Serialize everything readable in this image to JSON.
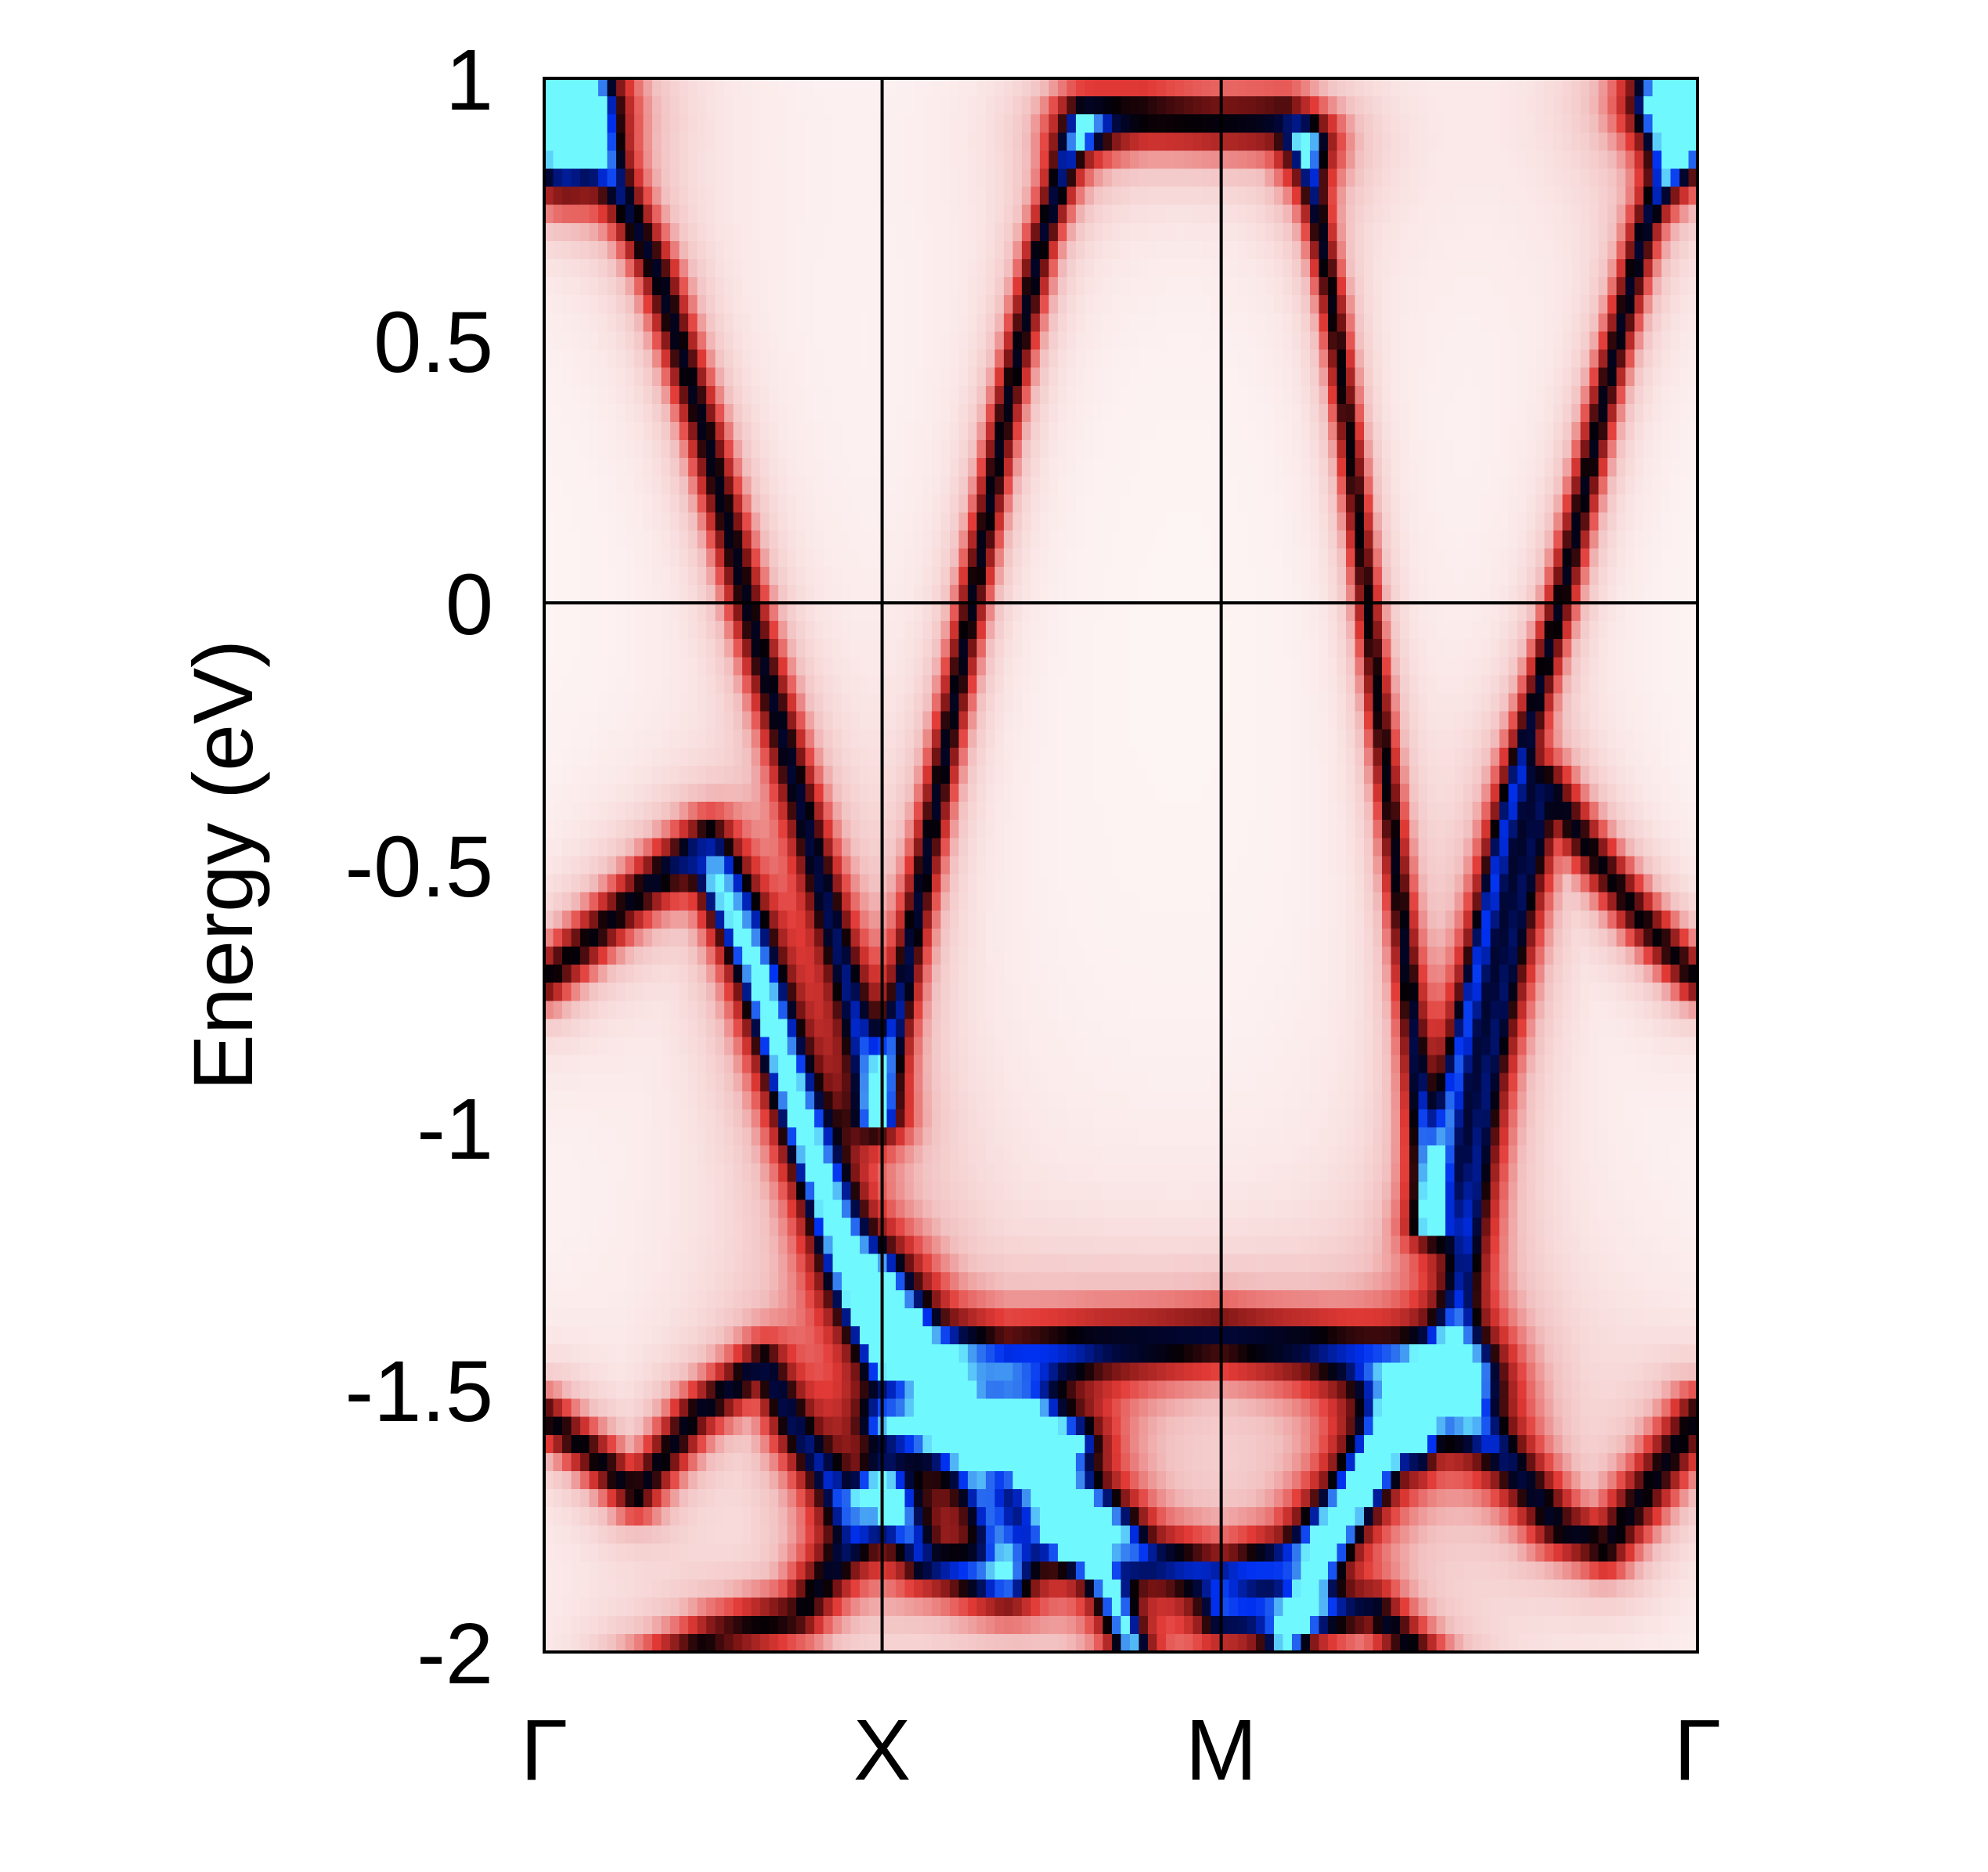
{
  "chart_data": {
    "type": "heatmap",
    "title": "",
    "subtitle": "",
    "xlabel": "",
    "ylabel": "Energy (eV)",
    "ylim": [
      -2,
      1
    ],
    "xlim": [
      0,
      1
    ],
    "grid": false,
    "legend": null,
    "colorbar": null,
    "y_ticks": [
      {
        "value": 1,
        "label": "1"
      },
      {
        "value": 0.5,
        "label": "0.5"
      },
      {
        "value": 0,
        "label": "0"
      },
      {
        "value": -0.5,
        "label": "-0.5"
      },
      {
        "value": -1,
        "label": "-1"
      },
      {
        "value": -1.5,
        "label": "-1.5"
      },
      {
        "value": -2,
        "label": "-2"
      }
    ],
    "x_ticks": [
      {
        "position": 0.0,
        "label": "Γ"
      },
      {
        "position": 0.293,
        "label": "X"
      },
      {
        "position": 0.587,
        "label": "M"
      },
      {
        "position": 1.0,
        "label": "Γ"
      }
    ],
    "reference_lines": {
      "vertical": [
        0.293,
        0.587
      ],
      "horizontal": [
        0
      ]
    },
    "colormap": {
      "description": "spectral weight: white -> red -> dark red -> black -> navy -> blue -> cyan",
      "stops": [
        {
          "v": 0.0,
          "color": "#fffbfb"
        },
        {
          "v": 0.18,
          "color": "#f2c0c0"
        },
        {
          "v": 0.35,
          "color": "#e23a36"
        },
        {
          "v": 0.5,
          "color": "#7a1414"
        },
        {
          "v": 0.6,
          "color": "#050005"
        },
        {
          "v": 0.7,
          "color": "#000840"
        },
        {
          "v": 0.82,
          "color": "#0030f0"
        },
        {
          "v": 0.92,
          "color": "#3a86f0"
        },
        {
          "v": 1.0,
          "color": "#70f8ff"
        }
      ]
    },
    "grid_resolution": {
      "k_columns": 128,
      "energy_rows": 87
    },
    "bands": [
      {
        "name": "Gamma-X crossing band",
        "width": 0.045,
        "weight": 1.0,
        "points": [
          [
            0.0,
            1.08
          ],
          [
            0.05,
            0.86
          ],
          [
            0.1,
            0.62
          ],
          [
            0.14,
            0.32
          ],
          [
            0.176,
            0.0
          ],
          [
            0.22,
            -0.36
          ],
          [
            0.26,
            -0.7
          ],
          [
            0.289,
            -0.97
          ]
        ]
      },
      {
        "name": "X-M rising band",
        "width": 0.035,
        "weight": 1.0,
        "points": [
          [
            0.289,
            -0.97
          ],
          [
            0.31,
            -0.75
          ],
          [
            0.34,
            -0.38
          ],
          [
            0.371,
            0.0
          ],
          [
            0.4,
            0.36
          ],
          [
            0.43,
            0.68
          ],
          [
            0.455,
            0.86
          ],
          [
            0.47,
            0.9
          ]
        ]
      },
      {
        "name": "flat band near M",
        "width": 0.07,
        "weight": 0.95,
        "points": [
          [
            0.47,
            0.92
          ],
          [
            0.52,
            0.93
          ],
          [
            0.587,
            0.92
          ],
          [
            0.64,
            0.92
          ],
          [
            0.66,
            0.88
          ]
        ]
      },
      {
        "name": "M-Gamma steep band",
        "width": 0.03,
        "weight": 0.95,
        "points": [
          [
            0.66,
            0.88
          ],
          [
            0.685,
            0.55
          ],
          [
            0.7,
            0.28
          ],
          [
            0.714,
            0.0
          ],
          [
            0.735,
            -0.42
          ],
          [
            0.755,
            -0.85
          ],
          [
            0.769,
            -1.18
          ]
        ]
      },
      {
        "name": "M-Gamma returning band",
        "width": 0.035,
        "weight": 1.0,
        "points": [
          [
            0.769,
            -1.18
          ],
          [
            0.79,
            -0.9
          ],
          [
            0.83,
            -0.45
          ],
          [
            0.881,
            0.0
          ],
          [
            0.92,
            0.4
          ],
          [
            0.955,
            0.72
          ],
          [
            0.98,
            0.86
          ],
          [
            1.0,
            1.08
          ]
        ]
      },
      {
        "name": "Gamma-X lower band",
        "width": 0.055,
        "weight": 0.95,
        "points": [
          [
            0.0,
            -0.72
          ],
          [
            0.05,
            -0.62
          ],
          [
            0.1,
            -0.52
          ],
          [
            0.143,
            -0.45
          ],
          [
            0.18,
            -0.62
          ],
          [
            0.22,
            -0.92
          ],
          [
            0.26,
            -1.18
          ],
          [
            0.293,
            -1.34
          ],
          [
            0.32,
            -1.42
          ],
          [
            0.35,
            -1.55
          ],
          [
            0.38,
            -1.7
          ],
          [
            0.4,
            -1.82
          ]
        ]
      },
      {
        "name": "Gamma-X second lower band",
        "width": 0.04,
        "weight": 0.9,
        "points": [
          [
            0.143,
            -0.52
          ],
          [
            0.18,
            -0.7
          ],
          [
            0.22,
            -1.0
          ],
          [
            0.26,
            -1.28
          ],
          [
            0.293,
            -1.45
          ]
        ]
      },
      {
        "name": "M-Gamma lower band",
        "width": 0.05,
        "weight": 0.95,
        "points": [
          [
            0.75,
            -1.52
          ],
          [
            0.786,
            -1.45
          ],
          [
            0.82,
            -0.9
          ],
          [
            0.85,
            -0.55
          ],
          [
            0.87,
            -0.35
          ],
          [
            0.9,
            -0.45
          ],
          [
            0.95,
            -0.6
          ],
          [
            1.0,
            -0.72
          ]
        ]
      },
      {
        "name": "Gamma zigzag band",
        "width": 0.05,
        "weight": 0.95,
        "points": [
          [
            0.0,
            -1.55
          ],
          [
            0.04,
            -1.62
          ],
          [
            0.08,
            -1.7
          ],
          [
            0.13,
            -1.55
          ],
          [
            0.19,
            -1.45
          ],
          [
            0.22,
            -1.58
          ],
          [
            0.26,
            -1.72
          ],
          [
            0.293,
            -1.68
          ],
          [
            0.33,
            -1.83
          ],
          [
            0.4,
            -1.87
          ]
        ]
      },
      {
        "name": "Gamma bottom band",
        "width": 0.06,
        "weight": 0.9,
        "points": [
          [
            0.08,
            -2.05
          ],
          [
            0.15,
            -1.97
          ],
          [
            0.22,
            -1.93
          ],
          [
            0.293,
            -1.72
          ]
        ]
      },
      {
        "name": "X-M flat band",
        "width": 0.07,
        "weight": 1.0,
        "points": [
          [
            0.293,
            -1.3
          ],
          [
            0.33,
            -1.42
          ],
          [
            0.4,
            -1.45
          ],
          [
            0.48,
            -1.42
          ],
          [
            0.587,
            -1.4
          ],
          [
            0.66,
            -1.42
          ],
          [
            0.75,
            -1.46
          ],
          [
            0.8,
            -1.48
          ]
        ]
      },
      {
        "name": "M circle lower",
        "width": 0.06,
        "weight": 1.0,
        "points": [
          [
            0.42,
            -1.55
          ],
          [
            0.46,
            -1.7
          ],
          [
            0.52,
            -1.82
          ],
          [
            0.587,
            -1.86
          ],
          [
            0.65,
            -1.82
          ],
          [
            0.7,
            -1.7
          ],
          [
            0.74,
            -1.55
          ]
        ]
      },
      {
        "name": "blue steep left",
        "width": 0.035,
        "weight": 1.4,
        "points": [
          [
            0.35,
            -1.52
          ],
          [
            0.4,
            -1.6
          ],
          [
            0.45,
            -1.75
          ],
          [
            0.49,
            -1.88
          ],
          [
            0.52,
            -2.05
          ]
        ]
      },
      {
        "name": "blue steep right",
        "width": 0.035,
        "weight": 1.3,
        "points": [
          [
            0.63,
            -2.05
          ],
          [
            0.66,
            -1.9
          ],
          [
            0.7,
            -1.72
          ],
          [
            0.74,
            -1.58
          ],
          [
            0.786,
            -1.45
          ]
        ]
      },
      {
        "name": "X-M mid flat",
        "width": 0.05,
        "weight": 1.0,
        "points": [
          [
            0.293,
            -1.56
          ],
          [
            0.34,
            -1.58
          ],
          [
            0.4,
            -1.58
          ],
          [
            0.46,
            -1.6
          ]
        ]
      },
      {
        "name": "Gamma right bottom",
        "width": 0.06,
        "weight": 0.95,
        "points": [
          [
            0.786,
            -1.52
          ],
          [
            0.83,
            -1.62
          ],
          [
            0.88,
            -1.76
          ],
          [
            0.92,
            -1.8
          ],
          [
            0.96,
            -1.68
          ],
          [
            1.0,
            -1.55
          ]
        ]
      },
      {
        "name": "bottom right band",
        "width": 0.05,
        "weight": 0.9,
        "points": [
          [
            0.587,
            -1.93
          ],
          [
            0.65,
            -1.93
          ],
          [
            0.72,
            -1.92
          ],
          [
            0.78,
            -2.05
          ]
        ]
      },
      {
        "name": "top corner band",
        "width": 0.08,
        "weight": 1.35,
        "points": [
          [
            0.0,
            0.95
          ],
          [
            0.03,
            0.96
          ]
        ]
      },
      {
        "name": "top corner band right",
        "width": 0.08,
        "weight": 1.35,
        "points": [
          [
            0.97,
            0.96
          ],
          [
            1.0,
            0.95
          ]
        ]
      }
    ],
    "blobs": [
      {
        "k": 0.015,
        "E": 0.9,
        "rk": 0.035,
        "rE": 0.12,
        "weight": 0.9
      },
      {
        "k": 0.985,
        "E": 0.92,
        "rk": 0.025,
        "rE": 0.1,
        "weight": 0.9
      },
      {
        "k": 0.46,
        "E": -1.77,
        "rk": 0.04,
        "rE": 0.06,
        "weight": 0.55
      },
      {
        "k": 0.76,
        "E": -1.58,
        "rk": 0.01,
        "rE": 0.06,
        "weight": 0.5
      }
    ]
  }
}
